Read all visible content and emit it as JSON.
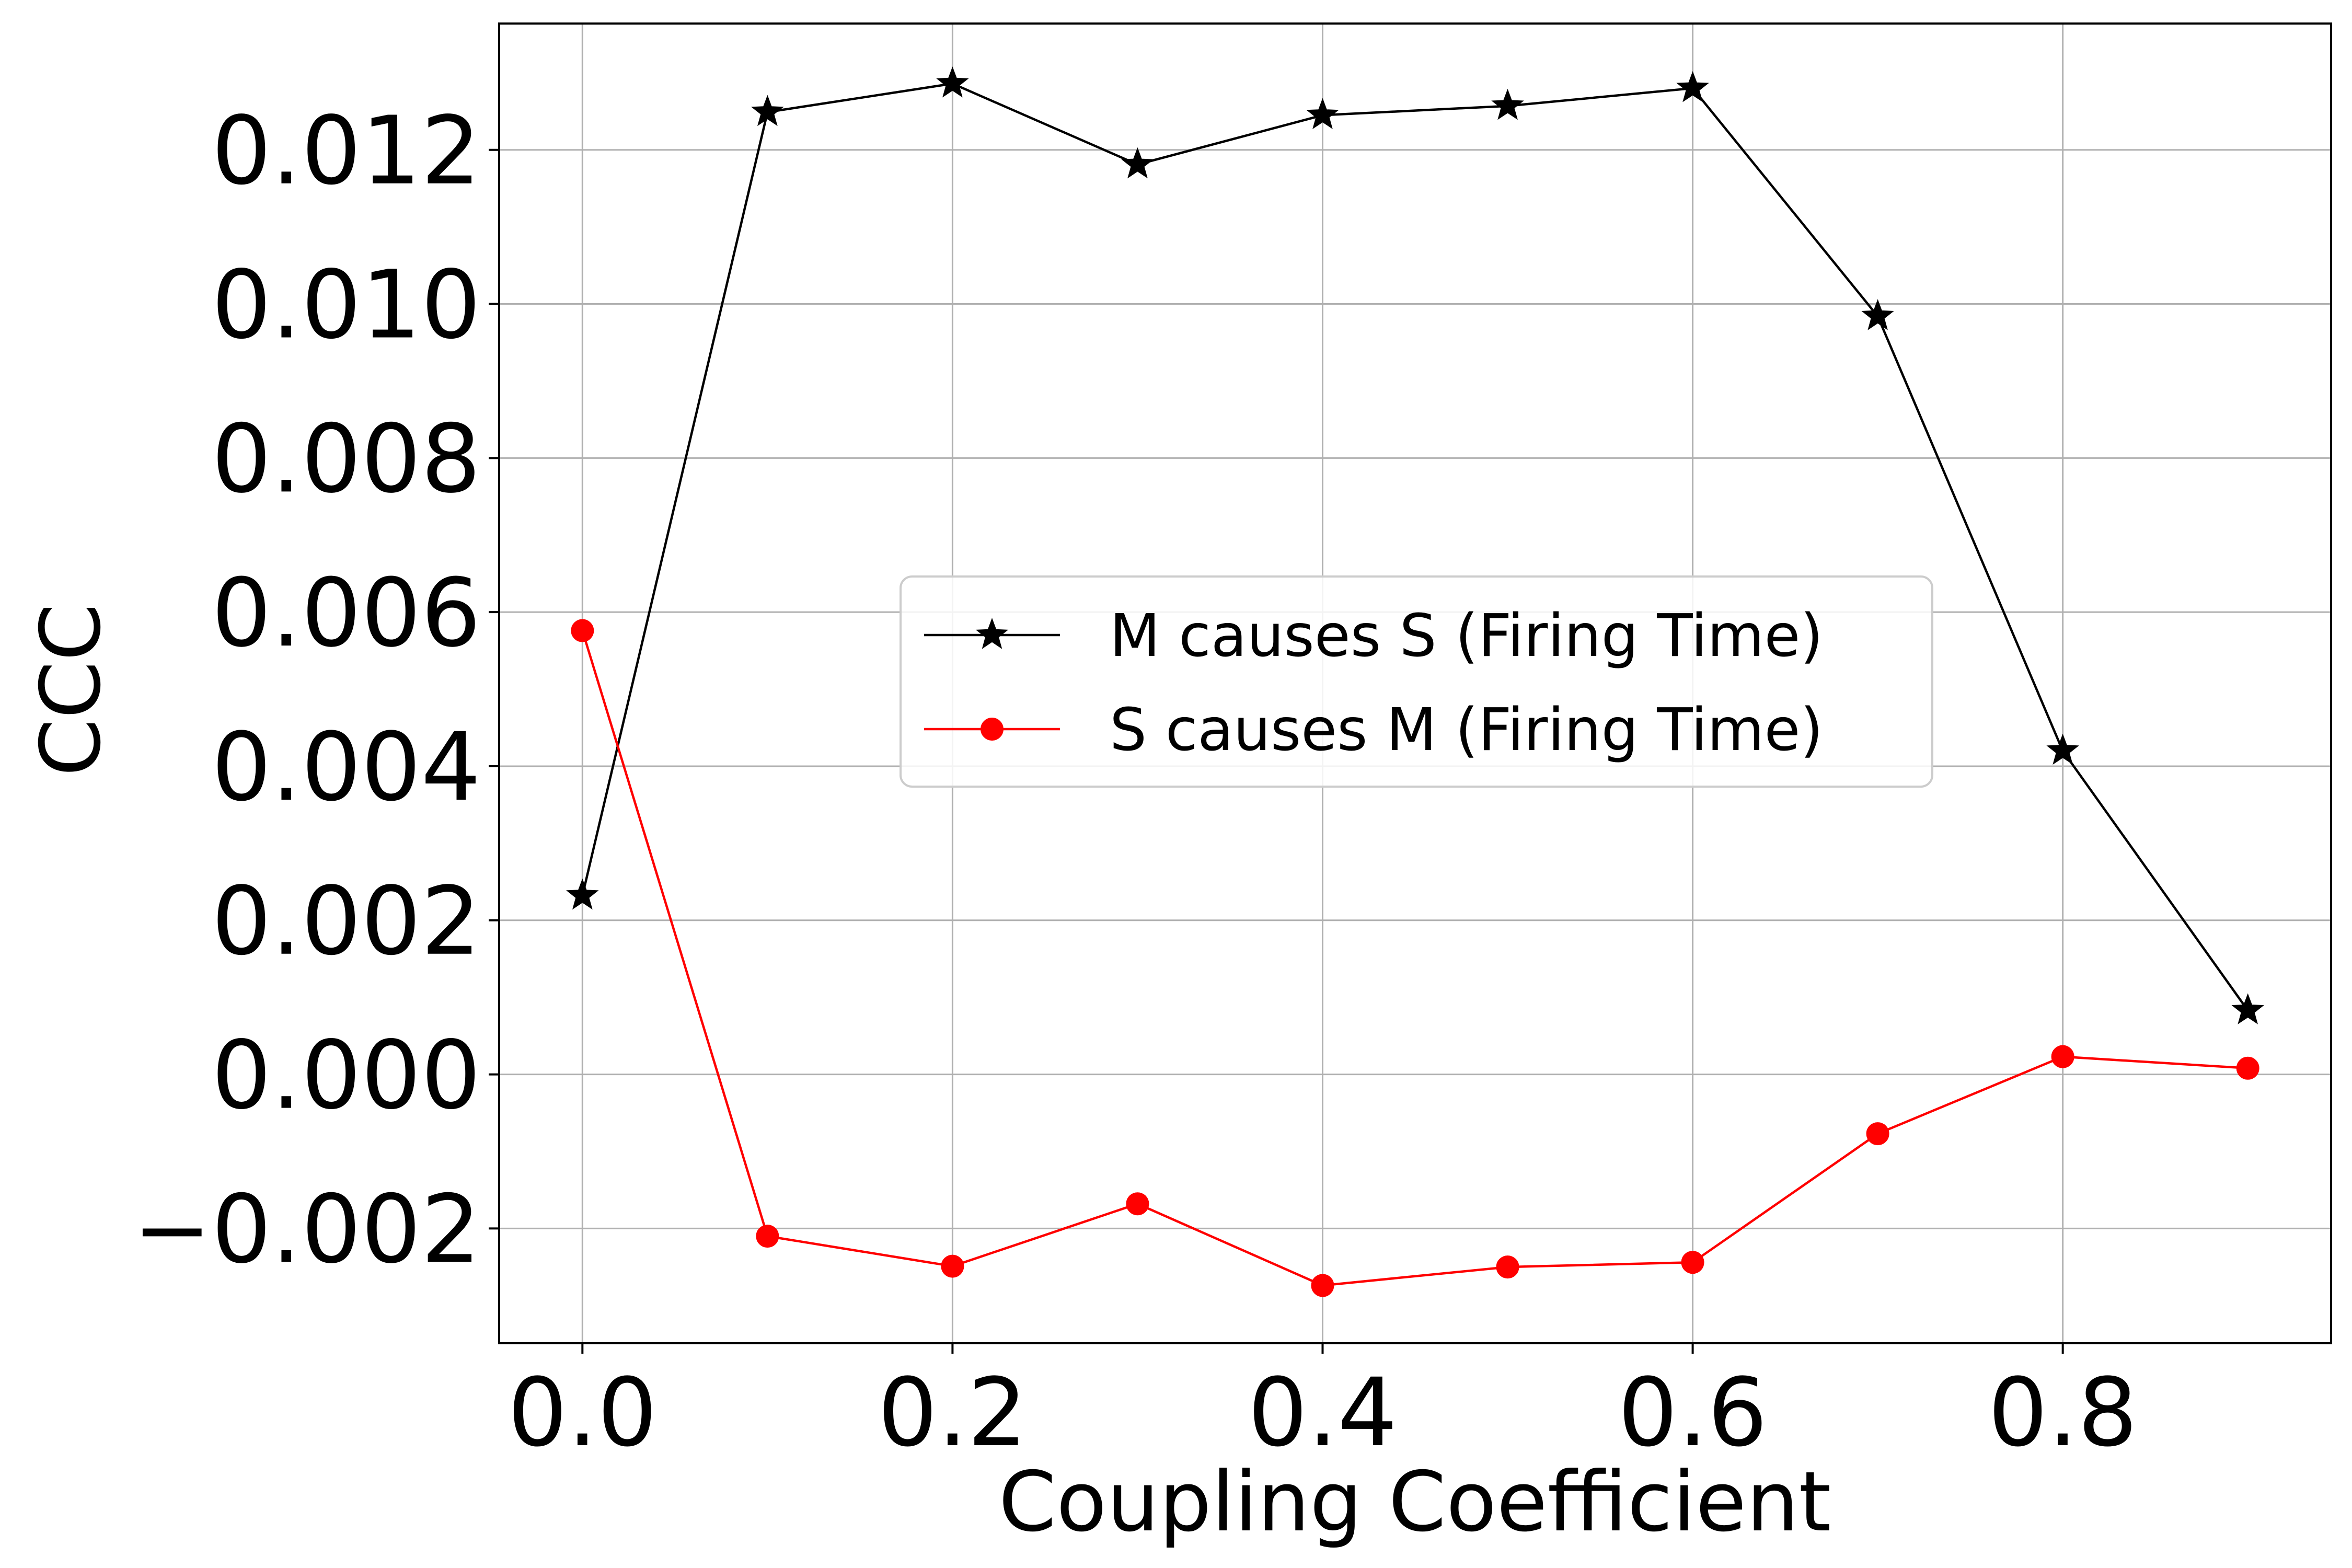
{
  "chart_data": {
    "type": "line",
    "title": "",
    "xlabel": "Coupling Coefficient",
    "ylabel": "CCC",
    "xlim": [
      -0.045,
      0.945
    ],
    "ylim": [
      -0.00349,
      0.01364
    ],
    "x_ticks": [
      0.0,
      0.2,
      0.4,
      0.6,
      0.8
    ],
    "x_tick_labels": [
      "0.0",
      "0.2",
      "0.4",
      "0.6",
      "0.8"
    ],
    "y_ticks": [
      -0.002,
      0.0,
      0.002,
      0.004,
      0.006,
      0.008,
      0.01,
      0.012
    ],
    "y_tick_labels": [
      "−0.002",
      "0.000",
      "0.002",
      "0.004",
      "0.006",
      "0.008",
      "0.010",
      "0.012"
    ],
    "grid": true,
    "legend_position": "center-right",
    "x": [
      0.0,
      0.1,
      0.2,
      0.3,
      0.4,
      0.5,
      0.6,
      0.7,
      0.8,
      0.9
    ],
    "series": [
      {
        "name": "M causes S (Firing Time)",
        "color": "#000000",
        "marker": "star",
        "values": [
          0.00232,
          0.01249,
          0.01286,
          0.01181,
          0.01245,
          0.01257,
          0.0128,
          0.00984,
          0.0042,
          0.00083
        ]
      },
      {
        "name": "S causes M (Firing Time)",
        "color": "#ff0000",
        "marker": "circle",
        "values": [
          0.00576,
          -0.0021,
          -0.00249,
          -0.00168,
          -0.00274,
          -0.0025,
          -0.00244,
          -0.00077,
          0.00023,
          8e-05
        ]
      }
    ]
  }
}
